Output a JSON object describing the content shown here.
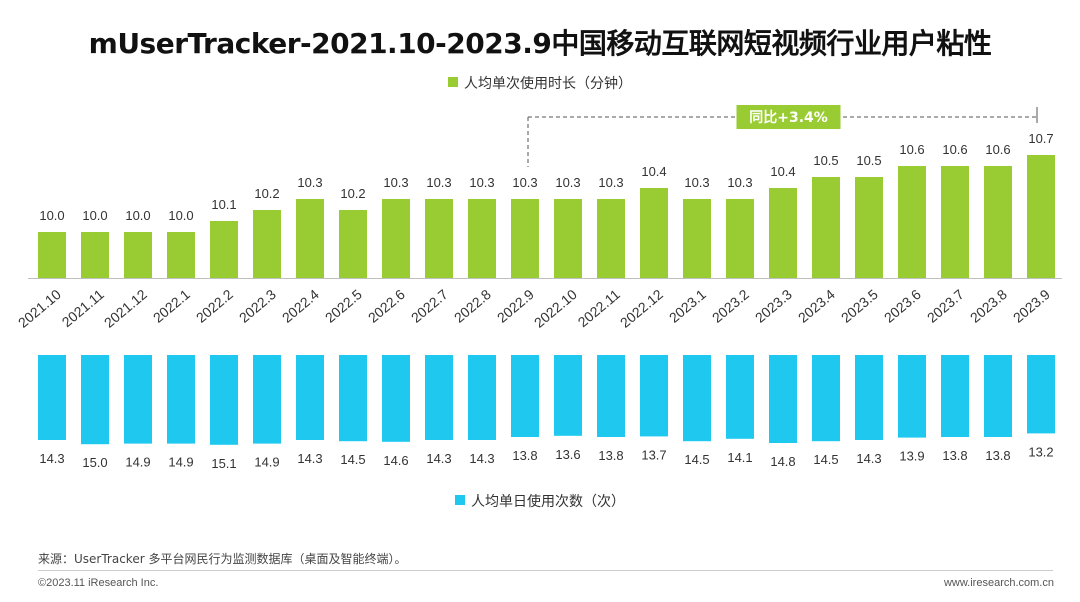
{
  "title": "mUserTracker-2021.10-2023.9中国移动互联网短视频行业用户粘性",
  "legend_top": "人均单次使用时长（分钟）",
  "legend_bottom": "人均单日使用次数（次）",
  "yoy_label": "同比+3.4%",
  "source": "来源：UserTracker 多平台网民行为监测数据库（桌面及智能终端）。",
  "copyright": "©2023.11 iResearch Inc.",
  "website": "www.iresearch.com.cn",
  "colors": {
    "green": "#99CC33",
    "blue": "#1EC8EE",
    "yoy_box": "#99CC33"
  },
  "chart_data": [
    {
      "type": "bar",
      "name": "人均单次使用时长（分钟）",
      "categories": [
        "2021.10",
        "2021.11",
        "2021.12",
        "2022.1",
        "2022.2",
        "2022.3",
        "2022.4",
        "2022.5",
        "2022.6",
        "2022.7",
        "2022.8",
        "2022.9",
        "2022.10",
        "2022.11",
        "2022.12",
        "2023.1",
        "2023.2",
        "2023.3",
        "2023.4",
        "2023.5",
        "2023.6",
        "2023.7",
        "2023.8",
        "2023.9"
      ],
      "values": [
        10.0,
        10.0,
        10.0,
        10.0,
        10.1,
        10.2,
        10.3,
        10.2,
        10.3,
        10.3,
        10.3,
        10.3,
        10.3,
        10.3,
        10.4,
        10.3,
        10.3,
        10.4,
        10.5,
        10.5,
        10.6,
        10.6,
        10.6,
        10.7
      ],
      "labels": [
        "10.0",
        "10.0",
        "10.0",
        "10.0",
        "10.1",
        "10.2",
        "10.3",
        "10.2",
        "10.3",
        "10.3",
        "10.3",
        "10.3",
        "10.3",
        "10.3",
        "10.4",
        "10.3",
        "10.3",
        "10.4",
        "10.5",
        "10.5",
        "10.6",
        "10.6",
        "10.6",
        "10.7"
      ],
      "annotation": {
        "text": "同比+3.4%",
        "from": "2022.9",
        "to": "2023.9"
      }
    },
    {
      "type": "bar",
      "name": "人均单日使用次数（次）",
      "categories": [
        "2021.10",
        "2021.11",
        "2021.12",
        "2022.1",
        "2022.2",
        "2022.3",
        "2022.4",
        "2022.5",
        "2022.6",
        "2022.7",
        "2022.8",
        "2022.9",
        "2022.10",
        "2022.11",
        "2022.12",
        "2023.1",
        "2023.2",
        "2023.3",
        "2023.4",
        "2023.5",
        "2023.6",
        "2023.7",
        "2023.8",
        "2023.9"
      ],
      "values": [
        14.3,
        15.0,
        14.9,
        14.9,
        15.1,
        14.9,
        14.3,
        14.5,
        14.6,
        14.3,
        14.3,
        13.8,
        13.6,
        13.8,
        13.7,
        14.5,
        14.1,
        14.8,
        14.5,
        14.3,
        13.9,
        13.8,
        13.8,
        13.2
      ],
      "labels": [
        "14.3",
        "15.0",
        "14.9",
        "14.9",
        "15.1",
        "14.9",
        "14.3",
        "14.5",
        "14.6",
        "14.3",
        "14.3",
        "13.8",
        "13.6",
        "13.8",
        "13.7",
        "14.5",
        "14.1",
        "14.8",
        "14.5",
        "14.3",
        "13.9",
        "13.8",
        "13.8",
        "13.2"
      ],
      "orientation": "downward"
    }
  ]
}
